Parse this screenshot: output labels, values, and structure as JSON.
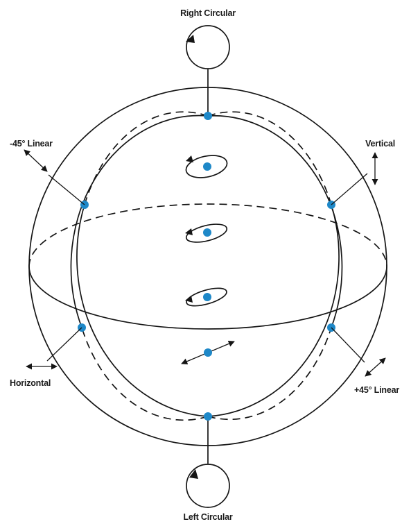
{
  "labels": {
    "right_circular": "Right Circular",
    "left_circular": "Left Circular",
    "minus45_linear": "-45° Linear",
    "plus45_linear": "+45° Linear",
    "vertical": "Vertical",
    "horizontal": "Horizontal"
  },
  "colors": {
    "line": "#151515",
    "point": "#1e88c8"
  }
}
